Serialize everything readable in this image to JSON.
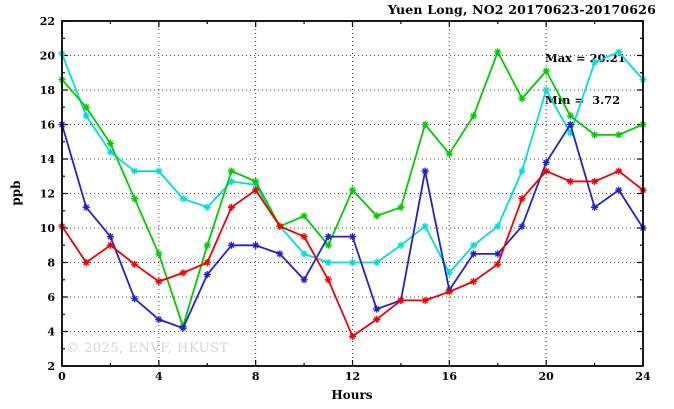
{
  "title": "Yuen Long, NO2 20170623-20170626",
  "annotation": {
    "max_label": "Max = 20.21",
    "min_label": "Min =  3.72"
  },
  "watermark": "© 2025, ENVF, HKUST",
  "chart_data": {
    "type": "line",
    "title": "Yuen Long, NO2 20170623-20170626",
    "xlabel": "Hours",
    "ylabel": "ppb",
    "xlim": [
      0,
      24
    ],
    "ylim": [
      2,
      22
    ],
    "grid": true,
    "legend_position": "none",
    "max_value": 20.21,
    "min_value": 3.72,
    "ticks": {
      "x_major": [
        0,
        4,
        8,
        12,
        16,
        20,
        24
      ],
      "x_minor_step": 2,
      "y_major": [
        2,
        4,
        6,
        8,
        10,
        12,
        14,
        16,
        18,
        20,
        22
      ],
      "y_minor_step": 1
    },
    "x": [
      0,
      1,
      2,
      3,
      4,
      5,
      6,
      7,
      8,
      9,
      10,
      11,
      12,
      13,
      14,
      15,
      16,
      17,
      18,
      19,
      20,
      21,
      22,
      23,
      24
    ],
    "series": [
      {
        "name": "cyan",
        "color": "#00dddd",
        "values": [
          20.1,
          16.5,
          14.4,
          13.3,
          13.3,
          11.7,
          11.2,
          12.7,
          12.5,
          10.1,
          8.5,
          8.0,
          8.0,
          8.0,
          9.0,
          10.1,
          7.4,
          9.0,
          10.1,
          13.3,
          18.0,
          15.5,
          19.6,
          20.2,
          18.6
        ]
      },
      {
        "name": "green",
        "color": "#00cc00",
        "values": [
          18.6,
          17.0,
          14.9,
          11.7,
          8.5,
          4.3,
          9.0,
          13.3,
          12.7,
          10.1,
          10.7,
          9.0,
          12.2,
          10.7,
          11.2,
          16.0,
          14.3,
          16.5,
          20.21,
          17.5,
          19.1,
          16.5,
          15.4,
          15.4,
          16.0
        ]
      },
      {
        "name": "blue",
        "color": "#2222cc",
        "values": [
          16.0,
          11.2,
          9.5,
          5.9,
          4.7,
          4.2,
          7.3,
          9.0,
          9.0,
          8.5,
          7.0,
          9.5,
          9.5,
          5.3,
          5.8,
          13.3,
          6.4,
          8.5,
          8.5,
          10.1,
          13.8,
          16.0,
          11.2,
          12.2,
          10.0
        ]
      },
      {
        "name": "red",
        "color": "#ee0000",
        "values": [
          10.1,
          8.0,
          9.0,
          7.9,
          6.9,
          7.4,
          8.0,
          11.2,
          12.2,
          10.1,
          9.5,
          7.0,
          3.72,
          4.7,
          5.8,
          5.8,
          6.3,
          6.9,
          7.9,
          11.7,
          13.3,
          12.7,
          12.7,
          13.3,
          12.2
        ]
      }
    ]
  }
}
